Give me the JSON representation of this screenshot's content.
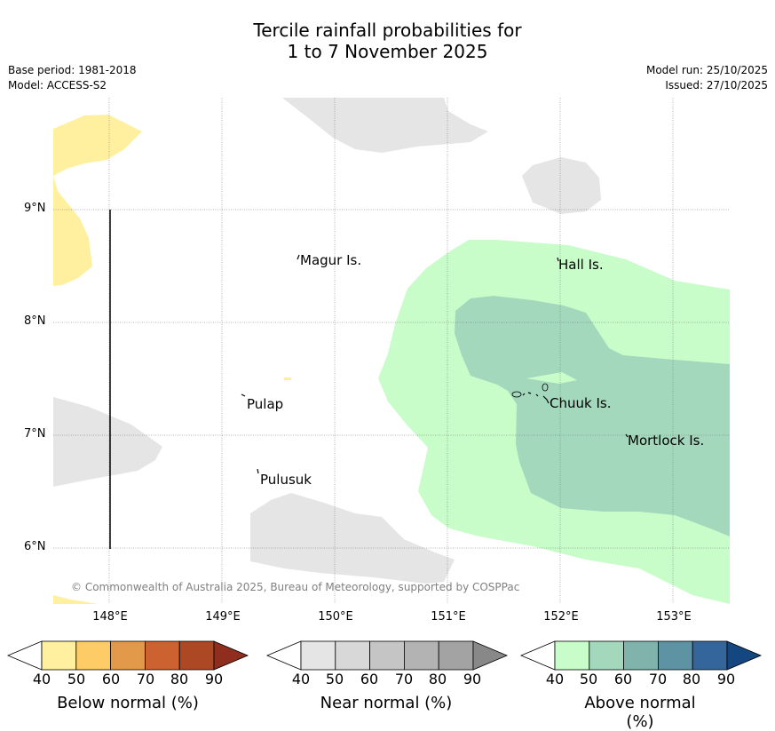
{
  "title": {
    "line1": "Tercile rainfall probabilities for",
    "line2": "1 to 7 November 2025"
  },
  "meta": {
    "base_period": "Base period: 1981-2018",
    "model": "Model: ACCESS-S2",
    "model_run": "Model run: 25/10/2025",
    "issued": "Issued: 27/10/2025"
  },
  "map": {
    "lat_labels": [
      "9°N",
      "8°N",
      "7°N",
      "6°N"
    ],
    "lon_labels": [
      "148°E",
      "149°E",
      "150°E",
      "151°E",
      "152°E",
      "153°E"
    ],
    "places": {
      "magur": "Magur Is.",
      "hall": "Hall Is.",
      "pulap": "Pulap",
      "chuuk": "Chuuk Is.",
      "mortlock": "Mortlock Is.",
      "pulusuk": "Pulusuk"
    },
    "copyright": "© Commonwealth of Australia 2025, Bureau of Meteorology, supported by COSPPac"
  },
  "colorbars": {
    "ticks": [
      "40",
      "50",
      "60",
      "70",
      "80",
      "90"
    ],
    "below": {
      "label": "Below normal (%)",
      "colors": [
        "#fff0a0",
        "#fecc66",
        "#e29a4a",
        "#cb622f",
        "#ad4825",
        "#8f2e1e"
      ]
    },
    "near": {
      "label": "Near normal (%)",
      "colors": [
        "#e5e5e5",
        "#d8d8d8",
        "#c5c5c5",
        "#b3b3b3",
        "#a3a3a3",
        "#888888"
      ]
    },
    "above": {
      "label": "Above normal (%)",
      "colors": [
        "#c8fdca",
        "#a3d8bd",
        "#7fb3ab",
        "#5e93a3",
        "#34659b",
        "#14467f"
      ]
    }
  }
}
